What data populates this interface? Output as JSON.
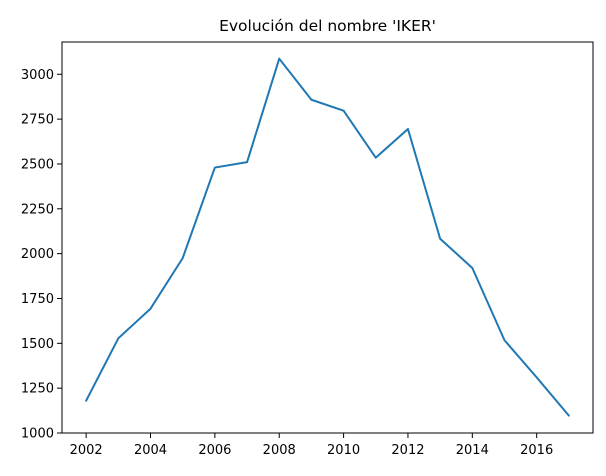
{
  "chart_data": {
    "type": "line",
    "title": "Evolución del nombre 'IKER'",
    "xlabel": "",
    "ylabel": "",
    "x": [
      2002,
      2003,
      2004,
      2005,
      2006,
      2007,
      2008,
      2009,
      2010,
      2011,
      2012,
      2013,
      2014,
      2015,
      2016,
      2017
    ],
    "series": [
      {
        "values": [
          1180,
          1528,
          1693,
          1975,
          2480,
          2510,
          3087,
          2858,
          2797,
          2535,
          2695,
          2083,
          1920,
          1517,
          1310,
          1097
        ],
        "color": "#1f77b4"
      }
    ],
    "xlim": [
      2001.25,
      2017.75
    ],
    "ylim": [
      1000,
      3180
    ],
    "xticks": [
      2002,
      2004,
      2006,
      2008,
      2010,
      2012,
      2014,
      2016
    ],
    "xtick_labels": [
      "2002",
      "2004",
      "2006",
      "2008",
      "2010",
      "2012",
      "2014",
      "2016"
    ],
    "yticks": [
      1000,
      1250,
      1500,
      1750,
      2000,
      2250,
      2500,
      2750,
      3000
    ],
    "ytick_labels": [
      "1000",
      "1250",
      "1500",
      "1750",
      "2000",
      "2250",
      "2500",
      "2750",
      "3000"
    ],
    "grid": false,
    "legend": "none"
  }
}
